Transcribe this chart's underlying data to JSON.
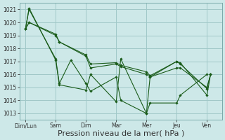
{
  "background_color": "#cde8e8",
  "grid_color": "#a0c8c8",
  "line_color": "#1a5c1a",
  "marker_color": "#1a5c1a",
  "xlabel": "Pression niveau de la mer( hPa )",
  "xlabel_fontsize": 8,
  "ylim": [
    1012.5,
    1021.5
  ],
  "yticks": [
    1013,
    1014,
    1015,
    1016,
    1017,
    1018,
    1019,
    1020,
    1021
  ],
  "xtick_labels": [
    "Dim/Lun",
    "Sam",
    "Dim",
    "Mar",
    "Mer",
    "Jeu",
    "Ven"
  ],
  "series": [
    {
      "x": [
        0.0,
        0.12,
        1.0,
        1.12,
        2.0,
        2.15,
        3.0,
        3.15,
        4.0,
        4.12,
        5.0,
        5.12,
        6.0,
        6.12
      ],
      "y": [
        1019.5,
        1021.1,
        1017.1,
        1015.2,
        1014.8,
        1016.0,
        1013.9,
        1017.2,
        1013.0,
        1015.8,
        1017.0,
        1016.9,
        1014.4,
        1016.0
      ]
    },
    {
      "x": [
        0.0,
        0.12,
        1.0,
        1.12,
        2.0,
        2.15,
        3.0,
        3.15,
        4.0,
        4.12,
        5.0,
        5.12,
        6.0,
        6.12
      ],
      "y": [
        1019.5,
        1020.0,
        1019.1,
        1018.5,
        1017.4,
        1016.5,
        1016.8,
        1016.6,
        1016.0,
        1015.8,
        1016.5,
        1016.5,
        1015.0,
        1016.0
      ]
    },
    {
      "x": [
        0.0,
        0.12,
        1.0,
        1.12,
        2.0,
        2.15,
        3.0,
        3.15,
        4.0,
        4.12,
        5.0,
        5.12,
        6.0,
        6.12
      ],
      "y": [
        1019.5,
        1020.0,
        1019.0,
        1018.5,
        1017.5,
        1016.8,
        1016.9,
        1016.7,
        1016.2,
        1015.9,
        1017.0,
        1016.8,
        1014.9,
        1016.0
      ]
    },
    {
      "x": [
        0.0,
        0.12,
        1.0,
        1.12,
        1.5,
        2.0,
        2.15,
        3.0,
        3.15,
        4.0,
        4.12,
        5.0,
        5.12,
        6.0
      ],
      "y": [
        1019.5,
        1021.0,
        1017.2,
        1015.3,
        1017.1,
        1015.3,
        1014.7,
        1015.8,
        1014.0,
        1013.0,
        1013.8,
        1013.8,
        1014.4,
        1016.0
      ]
    }
  ]
}
